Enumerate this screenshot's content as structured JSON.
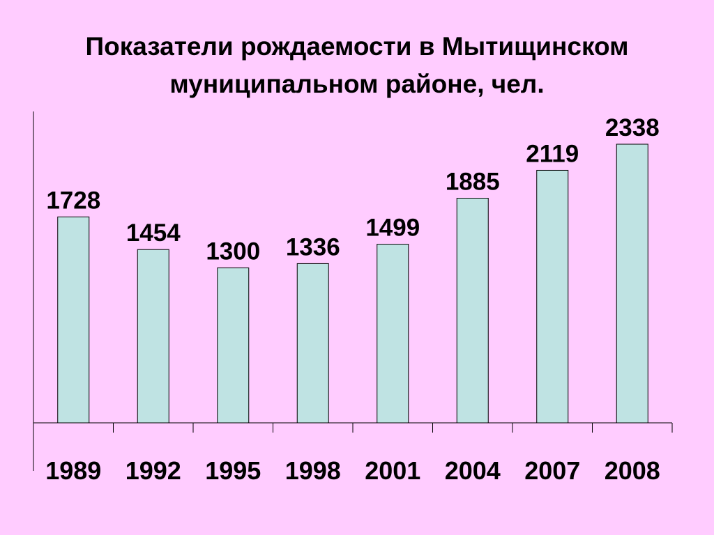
{
  "title": {
    "line1": "Показатели рождаемости в Мытищинском",
    "line2": "муниципальном районе, чел."
  },
  "colors": {
    "background": "#FFCCFF",
    "bar_fill": "#BFE3E3",
    "bar_stroke": "#000000"
  },
  "chart_data": {
    "type": "bar",
    "title": "Показатели рождаемости в Мытищинском муниципальном районе, чел.",
    "categories": [
      "1989",
      "1992",
      "1995",
      "1998",
      "2001",
      "2004",
      "2007",
      "2008"
    ],
    "values": [
      1728,
      1454,
      1300,
      1336,
      1499,
      1885,
      2119,
      2338
    ],
    "data_labels": [
      "1728",
      "1454",
      "1300",
      "1336",
      "1499",
      "1885",
      "2119",
      "2338"
    ],
    "xlabel": "",
    "ylabel": "",
    "ylim": [
      0,
      2338
    ],
    "grid": false,
    "legend": "none"
  }
}
